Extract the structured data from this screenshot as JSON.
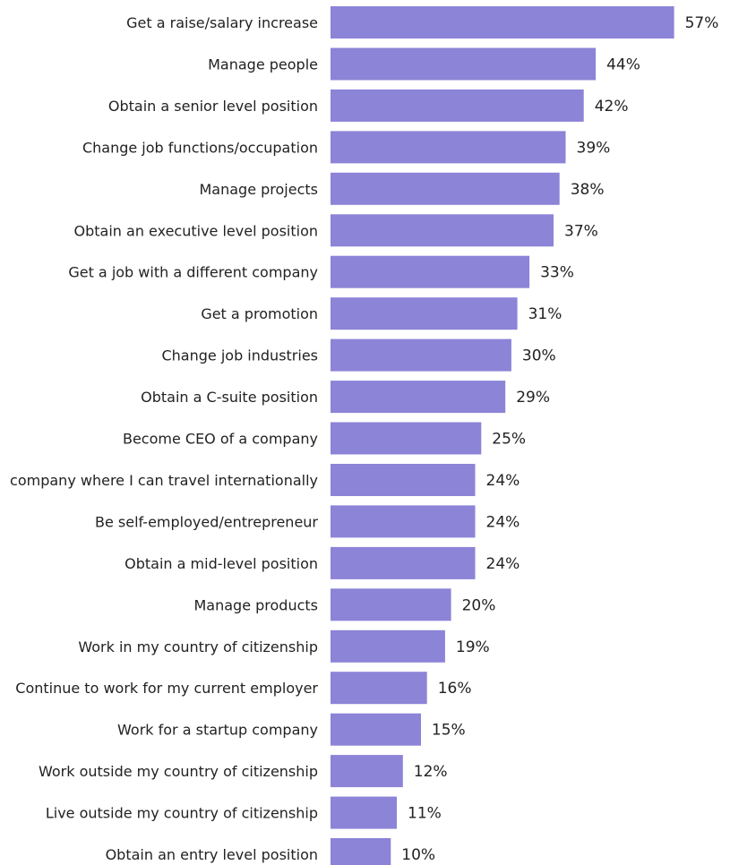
{
  "chart_data": {
    "type": "bar",
    "orientation": "horizontal",
    "categories": [
      "Get a raise/salary increase",
      "Manage people",
      "Obtain a senior level position",
      "Change job functions/occupation",
      "Manage projects",
      "Obtain an executive level position",
      "Get a job with a different company",
      "Get a promotion",
      "Change job industries",
      "Obtain a C-suite position",
      "Become CEO of a company",
      "company where I can travel internationally",
      "Be self-employed/entrepreneur",
      "Obtain a mid-level position",
      "Manage products",
      "Work in my country of citizenship",
      "Continue to work for my current employer",
      "Work for a startup company",
      "Work outside my country of citizenship",
      "Live outside my country of citizenship",
      "Obtain an entry level position"
    ],
    "values": [
      57,
      44,
      42,
      39,
      38,
      37,
      33,
      31,
      30,
      29,
      25,
      24,
      24,
      24,
      20,
      19,
      16,
      15,
      12,
      11,
      10
    ],
    "value_labels": [
      "57%",
      "44%",
      "42%",
      "39%",
      "38%",
      "37%",
      "33%",
      "31%",
      "30%",
      "29%",
      "25%",
      "24%",
      "24%",
      "24%",
      "20%",
      "19%",
      "16%",
      "15%",
      "12%",
      "11%",
      "10%"
    ],
    "bar_color": "#8b84d7",
    "grid": false,
    "legend": "none"
  }
}
